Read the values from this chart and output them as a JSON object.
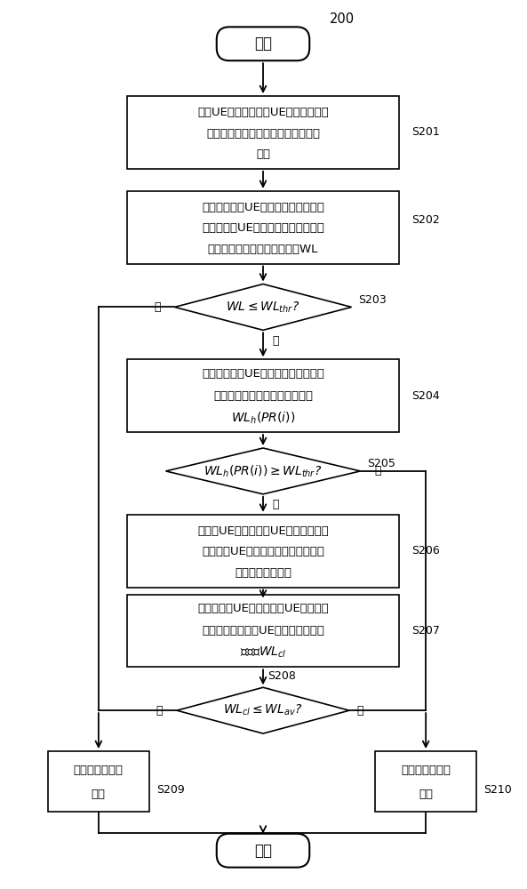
{
  "fig_width": 5.93,
  "fig_height": 10.0,
  "bg_color": "#ffffff",
  "label_200": "200",
  "start_text": "开始",
  "end_text": "结束",
  "box201_lines": [
    "当前UE获取关于其它UE的数据包优先",
    "级信息和用于数据包传输的资源数量",
    "信息"
  ],
  "box201_label": "S201",
  "box202_lines": [
    "确定与比当前UE的数据包优先级更高",
    "以及与当前UE的数据包优先级相同的",
    "优先级有关的网络业务负载量WL"
  ],
  "box202_label": "S202",
  "diamond203_label": "S203",
  "diamond203_yes": "是",
  "diamond203_no": "否",
  "box204_lines": [
    "确定与比当前UE的数据包优先级更高",
    "的优先级有关的网络业务负载量"
  ],
  "box204_label": "S204",
  "diamond205_label": "S205",
  "diamond205_yes": "是",
  "diamond205_no": "否",
  "box206_lines": [
    "对当前UE以及与当前UE处于相同优先",
    "级的其它UE进行随机排列，以赋予不",
    "同的随机优先级值"
  ],
  "box206_label": "S206",
  "box207_lines": [
    "确定与当前UE以及比当前UE的数据包",
    "优先级更高的其它UE有关的网络业务"
  ],
  "box207_label": "S207",
  "diamond208_label": "S208",
  "diamond208_yes": "是",
  "diamond208_no": "否",
  "box209_lines": [
    "继续进行数据包",
    "传输"
  ],
  "box209_label": "S209",
  "box210_lines": [
    "停止进行数据包",
    "传输"
  ],
  "box210_label": "S210",
  "line_color": "#000000",
  "box_facecolor": "#ffffff",
  "box_edgecolor": "#000000",
  "text_color": "#000000",
  "fontsize_chinese": 9.5,
  "fontsize_math": 10.0,
  "fontsize_label": 9.0,
  "fontsize_yesno": 9.0,
  "fontsize_title": 10.5,
  "fontsize_starend": 12.0
}
